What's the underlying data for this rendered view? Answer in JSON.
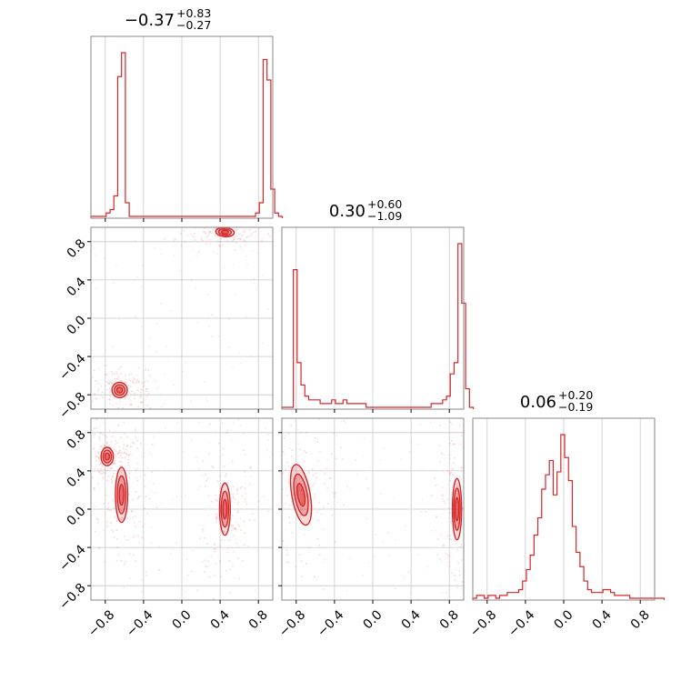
{
  "chart_data": {
    "type": "corner",
    "color": "#d62728",
    "grid": true,
    "axis_range": [
      -0.95,
      0.95
    ],
    "ticks": [
      -0.8,
      -0.4,
      0.0,
      0.4,
      0.8
    ],
    "tick_labels": [
      "−0.8",
      "−0.4",
      "0.0",
      "0.4",
      "0.8"
    ],
    "titles": [
      {
        "value": "−0.37",
        "plus": "+0.83",
        "minus": "−0.27"
      },
      {
        "value": "0.30",
        "plus": "+0.60",
        "minus": "−1.09"
      },
      {
        "value": "0.06",
        "plus": "+0.20",
        "minus": "−0.19"
      }
    ],
    "histograms": [
      {
        "param": 0,
        "x_start": -0.95,
        "bin_width": 0.04,
        "counts": [
          0,
          0,
          0,
          0,
          1,
          2,
          6,
          41,
          48,
          4,
          0,
          0,
          0,
          0,
          0,
          0,
          0,
          0,
          0,
          0,
          0,
          0,
          0,
          0,
          0,
          0,
          0,
          0,
          0,
          0,
          0,
          0,
          0,
          0,
          0,
          0,
          0,
          0,
          0,
          0,
          0,
          0,
          0,
          1,
          4,
          46,
          40,
          8,
          1,
          0
        ]
      },
      {
        "param": 1,
        "x_start": -0.95,
        "bin_width": 0.04,
        "counts": [
          0,
          0,
          0,
          37,
          12,
          6,
          3,
          2,
          2,
          2,
          1,
          1,
          1,
          2,
          1,
          1,
          2,
          1,
          1,
          1,
          1,
          1,
          0,
          0,
          0,
          0,
          0,
          0,
          0,
          0,
          0,
          0,
          0,
          0,
          0,
          0,
          0,
          0,
          0,
          1,
          1,
          1,
          2,
          3,
          9,
          12,
          44,
          28,
          5,
          0
        ]
      },
      {
        "param": 2,
        "x_start": -0.95,
        "bin_width": 0.04,
        "counts": [
          0,
          1,
          1,
          0,
          1,
          1,
          0,
          1,
          1,
          2,
          2,
          2,
          3,
          6,
          10,
          15,
          22,
          28,
          38,
          43,
          48,
          36,
          44,
          57,
          49,
          41,
          25,
          16,
          11,
          6,
          3,
          2,
          2,
          2,
          3,
          3,
          2,
          1,
          1,
          1,
          1,
          0,
          0,
          0,
          0,
          0,
          0,
          0,
          0,
          0
        ]
      }
    ],
    "scatter_2d": [
      {
        "x_param": 0,
        "y_param": 1,
        "clusters": [
          {
            "center": [
              0.45,
              0.9
            ],
            "spread": [
              0.06,
              0.03
            ],
            "tilt": -0.2
          },
          {
            "center": [
              -0.65,
              -0.75
            ],
            "spread": [
              0.05,
              0.05
            ],
            "tilt": 1.0
          }
        ]
      },
      {
        "x_param": 0,
        "y_param": 2,
        "clusters": [
          {
            "center": [
              -0.63,
              0.15
            ],
            "spread": [
              0.04,
              0.18
            ],
            "tilt": 0.0
          },
          {
            "center": [
              0.45,
              0.0
            ],
            "spread": [
              0.035,
              0.17
            ],
            "tilt": 0.0
          },
          {
            "center": [
              -0.78,
              0.55
            ],
            "spread": [
              0.04,
              0.06
            ],
            "tilt": 0.0
          }
        ]
      },
      {
        "x_param": 1,
        "y_param": 2,
        "clusters": [
          {
            "center": [
              -0.75,
              0.15
            ],
            "spread": [
              0.06,
              0.2
            ],
            "tilt": 0.4
          },
          {
            "center": [
              0.88,
              0.0
            ],
            "spread": [
              0.03,
              0.2
            ],
            "tilt": 0.0
          }
        ]
      }
    ]
  }
}
